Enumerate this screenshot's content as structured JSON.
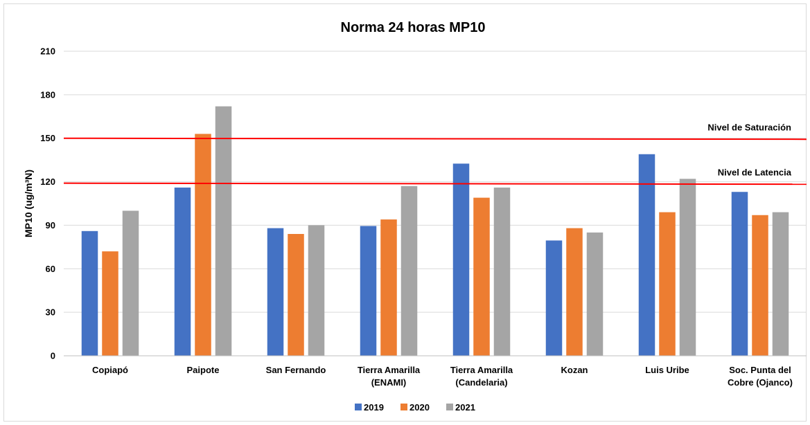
{
  "chart_data": {
    "type": "bar",
    "title": "Norma 24 horas MP10",
    "xlabel": "",
    "ylabel": "MP10 (ug/m³N)",
    "ylim": [
      0,
      210
    ],
    "yticks": [
      0,
      30,
      60,
      90,
      120,
      150,
      180,
      210
    ],
    "grid": true,
    "legend_position": "bottom",
    "categories": [
      [
        "Copiapó"
      ],
      [
        "Paipote"
      ],
      [
        "San Fernando"
      ],
      [
        "Tierra Amarilla",
        "(ENAMI)"
      ],
      [
        "Tierra Amarilla",
        "(Candelaria)"
      ],
      [
        "Kozan"
      ],
      [
        "Luis Uribe"
      ],
      [
        "Soc. Punta del",
        "Cobre (Ojanco)"
      ]
    ],
    "series": [
      {
        "name": "2019",
        "color": "#4472c4",
        "values": [
          86,
          116,
          88,
          89.5,
          132.5,
          79.5,
          139,
          113
        ]
      },
      {
        "name": "2020",
        "color": "#ed7d31",
        "values": [
          72,
          153,
          84,
          94,
          109,
          88,
          99,
          97
        ]
      },
      {
        "name": "2021",
        "color": "#a5a5a5",
        "values": [
          100,
          172,
          90,
          117,
          116,
          85,
          122,
          99
        ]
      }
    ],
    "reference_lines": [
      {
        "label": "Nivel de Saturación",
        "value": 150,
        "color": "#ff0000"
      },
      {
        "label": "Nivel de Latencia",
        "value": 119,
        "color": "#ff0000"
      }
    ]
  }
}
